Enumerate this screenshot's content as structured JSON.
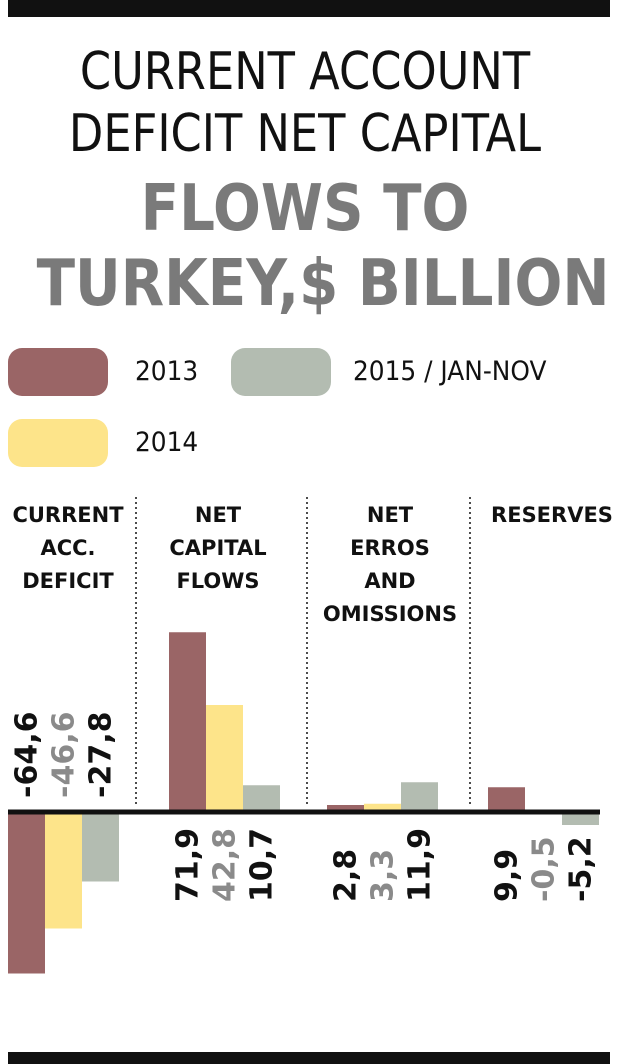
{
  "title": {
    "line1": "CURRENT ACCOUNT",
    "line2": "DEFICIT NET CAPITAL",
    "line3": "FLOWS TO",
    "line4": "TURKEY,$ BILLION"
  },
  "legend": [
    {
      "label": "2013",
      "color": "#9a6566"
    },
    {
      "label": "2014",
      "color": "#fde48a"
    },
    {
      "label": "2015 / JAN-NOV",
      "color": "#b3bcb1"
    }
  ],
  "colors": {
    "series": [
      "#9a6566",
      "#fde48a",
      "#b3bcb1"
    ],
    "value_text": [
      "#111111",
      "#8a8a8a",
      "#111111"
    ],
    "title_bold": "#7a7a7a",
    "axis": "#111111"
  },
  "chart_data": {
    "type": "bar",
    "title": "CURRENT ACCOUNT DEFICIT NET CAPITAL FLOWS TO TURKEY,$ BILLION",
    "categories": [
      [
        "CURRENT",
        "ACC.",
        "DEFICIT"
      ],
      [
        "NET",
        "CAPITAL",
        "FLOWS"
      ],
      [
        "NET",
        "ERROS",
        "AND",
        "OMISSIONS"
      ],
      [
        "RESERVES"
      ]
    ],
    "series": [
      {
        "name": "2013",
        "values": [
          -64.6,
          71.9,
          2.8,
          9.9
        ],
        "labels": [
          "-64,6",
          "71,9",
          "2,8",
          "9,9"
        ]
      },
      {
        "name": "2014",
        "values": [
          -46.6,
          42.8,
          3.3,
          -0.5
        ],
        "labels": [
          "-46,6",
          "42,8",
          "3,3",
          "-0,5"
        ]
      },
      {
        "name": "2015 / JAN-NOV",
        "values": [
          -27.8,
          10.7,
          11.9,
          -5.2
        ],
        "labels": [
          "-27,8",
          "10,7",
          "11,9",
          "-5,2"
        ]
      }
    ],
    "grid": false,
    "legend_position": "top"
  }
}
